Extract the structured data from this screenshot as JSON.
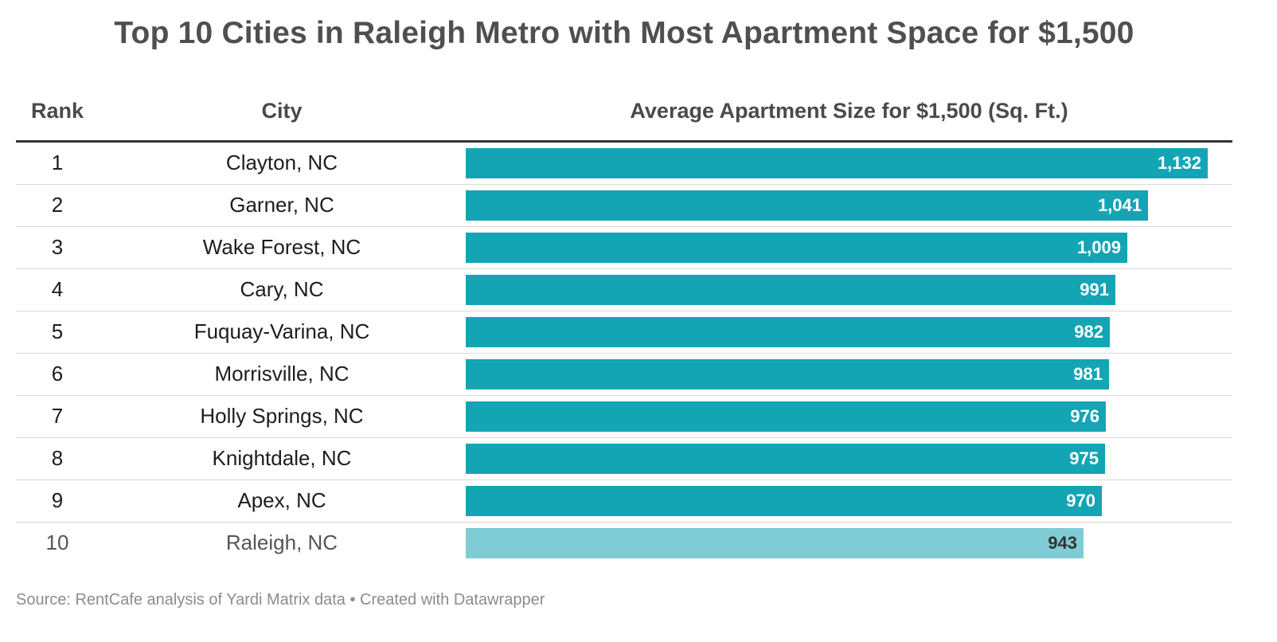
{
  "title": "Top 10 Cities in Raleigh Metro with Most Apartment Space for $1,500",
  "columns": {
    "rank": "Rank",
    "city": "City",
    "size": "Average Apartment Size for $1,500 (Sq. Ft.)"
  },
  "footer": "Source: RentCafe analysis of Yardi Matrix data • Created with Datawrapper",
  "colors": {
    "bar": "#14a5b5",
    "bar_highlight": "#7fccd4"
  },
  "chart_data": {
    "type": "table",
    "title": "Top 10 Cities in Raleigh Metro with Most Apartment Space for $1,500",
    "columns": [
      "Rank",
      "City",
      "Average Apartment Size for $1,500 (Sq. Ft.)"
    ],
    "bar_max": 1132,
    "rows": [
      {
        "rank": "1",
        "city": "Clayton, NC",
        "value": 1132,
        "label": "1,132"
      },
      {
        "rank": "2",
        "city": "Garner, NC",
        "value": 1041,
        "label": "1,041"
      },
      {
        "rank": "3",
        "city": "Wake Forest, NC",
        "value": 1009,
        "label": "1,009"
      },
      {
        "rank": "4",
        "city": "Cary, NC",
        "value": 991,
        "label": "991"
      },
      {
        "rank": "5",
        "city": "Fuquay-Varina, NC",
        "value": 982,
        "label": "982"
      },
      {
        "rank": "6",
        "city": "Morrisville, NC",
        "value": 981,
        "label": "981"
      },
      {
        "rank": "7",
        "city": "Holly Springs, NC",
        "value": 976,
        "label": "976"
      },
      {
        "rank": "8",
        "city": "Knightdale, NC",
        "value": 975,
        "label": "975"
      },
      {
        "rank": "9",
        "city": "Apex, NC",
        "value": 970,
        "label": "970"
      },
      {
        "rank": "10",
        "city": "Raleigh, NC",
        "value": 943,
        "label": "943",
        "highlight": true
      }
    ]
  }
}
